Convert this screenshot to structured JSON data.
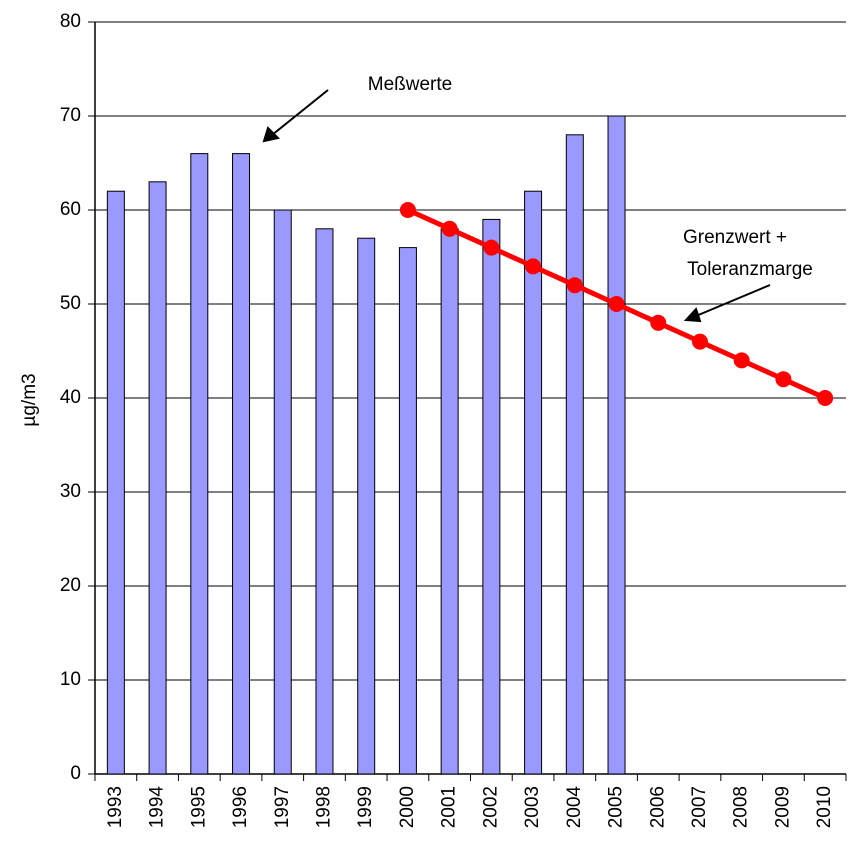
{
  "chart_data": {
    "type": "bar",
    "y_label": "µg/m3",
    "categories": [
      "1993",
      "1994",
      "1995",
      "1996",
      "1997",
      "1998",
      "1999",
      "2000",
      "2001",
      "2002",
      "2003",
      "2004",
      "2005",
      "2006",
      "2007",
      "2008",
      "2009",
      "2010"
    ],
    "series": [
      {
        "type": "bar",
        "color": "#9999ff",
        "values": [
          62,
          63,
          66,
          66,
          60,
          58,
          57,
          56,
          58,
          59,
          62,
          68,
          70,
          null,
          null,
          null,
          null,
          null
        ]
      },
      {
        "type": "line",
        "color": "#ff0000",
        "values": [
          null,
          null,
          null,
          null,
          null,
          null,
          null,
          60,
          58,
          56,
          54,
          52,
          50,
          48,
          46,
          44,
          42,
          40
        ]
      }
    ],
    "annotations": [
      "Meßwerte",
      "Grenzwert +",
      "Toleranzmarge"
    ],
    "ylim": [
      0,
      80
    ],
    "yticks": [
      0,
      10,
      20,
      30,
      40,
      50,
      60,
      70,
      80
    ],
    "grid": true
  }
}
